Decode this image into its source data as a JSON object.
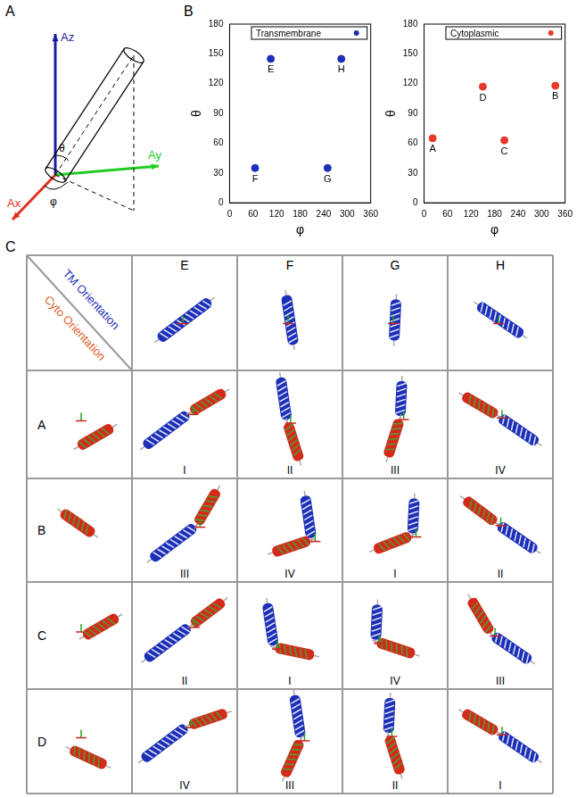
{
  "panel_labels": [
    "A",
    "B",
    "C"
  ],
  "diagram": {
    "axes": [
      {
        "label": "Az",
        "color": "#1a1aa6"
      },
      {
        "label": "Ax",
        "color": "#e03020"
      },
      {
        "label": "Ay",
        "color": "#22cc22"
      }
    ],
    "angles": [
      "θ",
      "φ"
    ]
  },
  "chart_data": [
    {
      "type": "scatter",
      "xlabel": "φ",
      "ylabel": "θ",
      "xlim": [
        0,
        360
      ],
      "xticks": [
        0,
        60,
        120,
        180,
        240,
        300,
        360
      ],
      "ylim": [
        0,
        180
      ],
      "yticks": [
        0,
        30,
        60,
        90,
        120,
        150,
        180
      ],
      "grid": false,
      "legend": "upper right",
      "series": [
        {
          "name": "Transmembrane",
          "color": "#1c2fb8",
          "x": [
            105,
            285,
            65,
            250
          ],
          "values": [
            145,
            145,
            35,
            35
          ],
          "point_labels": [
            "E",
            "H",
            "F",
            "G"
          ]
        }
      ]
    },
    {
      "type": "scatter",
      "xlabel": "φ",
      "ylabel": "θ",
      "xlim": [
        0,
        360
      ],
      "xticks": [
        0,
        60,
        120,
        180,
        240,
        300,
        360
      ],
      "ylim": [
        0,
        180
      ],
      "yticks": [
        0,
        30,
        60,
        90,
        120,
        150,
        180
      ],
      "grid": false,
      "legend": "upper right",
      "series": [
        {
          "name": "Cytoplasmic",
          "color": "#e8392a",
          "x": [
            22,
            150,
            205,
            335
          ],
          "values": [
            65,
            117,
            63,
            118
          ],
          "point_labels": [
            "A",
            "D",
            "C",
            "B"
          ]
        }
      ]
    }
  ],
  "grid": {
    "corner": {
      "column_title": "TM Orientation",
      "row_title": "Cyto Orientation"
    },
    "columns": [
      "E",
      "F",
      "G",
      "H"
    ],
    "rows": [
      {
        "label": "A",
        "cells": [
          "I",
          "II",
          "III",
          "IV"
        ]
      },
      {
        "label": "B",
        "cells": [
          "III",
          "IV",
          "I",
          "II"
        ]
      },
      {
        "label": "C",
        "cells": [
          "II",
          "I",
          "IV",
          "III"
        ]
      },
      {
        "label": "D",
        "cells": [
          "IV",
          "III",
          "II",
          "I"
        ]
      }
    ]
  }
}
